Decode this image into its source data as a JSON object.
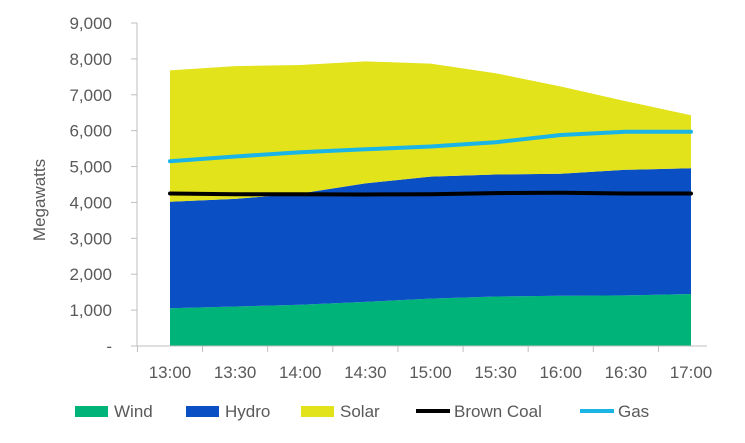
{
  "chart_data": {
    "type": "area",
    "x": [
      "13:00",
      "13:30",
      "14:00",
      "14:30",
      "15:00",
      "15:30",
      "16:00",
      "16:30",
      "17:00"
    ],
    "ylabel": "Megawatts",
    "ylim": [
      0,
      9000
    ],
    "yticks": [
      "-",
      "1,000",
      "2,000",
      "3,000",
      "4,000",
      "5,000",
      "6,000",
      "7,000",
      "8,000",
      "9,000"
    ],
    "yticks_values": [
      0,
      1000,
      2000,
      3000,
      4000,
      5000,
      6000,
      7000,
      8000,
      9000
    ],
    "grid": false,
    "legend": "bottom",
    "stacked_areas": [
      {
        "name": "Wind",
        "color": "#00b379",
        "values": [
          1050,
          1100,
          1150,
          1230,
          1320,
          1380,
          1400,
          1410,
          1450
        ]
      },
      {
        "name": "Hydro",
        "color": "#0a4fc4",
        "values": [
          2970,
          3000,
          3100,
          3300,
          3400,
          3400,
          3400,
          3500,
          3500
        ]
      },
      {
        "name": "Solar",
        "color": "#e2e31b",
        "values": [
          3660,
          3700,
          3580,
          3400,
          3150,
          2820,
          2430,
          1910,
          1480
        ]
      }
    ],
    "lines": [
      {
        "name": "Brown Coal",
        "color": "#000000",
        "values": [
          4250,
          4230,
          4230,
          4220,
          4230,
          4260,
          4270,
          4250,
          4250
        ]
      },
      {
        "name": "Gas",
        "color": "#1ab4e6",
        "values": [
          5150,
          5280,
          5400,
          5480,
          5560,
          5680,
          5880,
          5970,
          5970
        ]
      }
    ],
    "legend_order": [
      "Wind",
      "Hydro",
      "Solar",
      "Brown Coal",
      "Gas"
    ]
  }
}
